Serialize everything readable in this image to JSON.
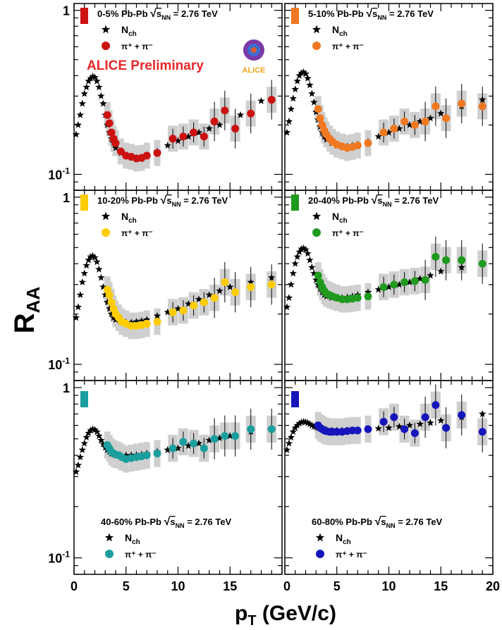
{
  "figure": {
    "ylabel_main": "R",
    "ylabel_sub": "AA",
    "xlabel_main": "p",
    "xlabel_sub": "T",
    "xlabel_unit": " (GeV/c)",
    "preliminary": "ALICE Preliminary",
    "logo_text": "ALICE",
    "system": "Pb-Pb",
    "sqrt_s": "s",
    "sqrt_s_sub": "NN",
    "energy": "= 2.76 TeV",
    "legend_nch": "N",
    "legend_nch_sub": "ch",
    "legend_pion": "π⁺ + π⁻",
    "y_ticks": [
      {
        "value": 0.1,
        "base": "10",
        "exp": "-1"
      },
      {
        "value": 1,
        "base": "1",
        "exp": ""
      }
    ],
    "x_ticks": [
      "0",
      "5",
      "10",
      "15",
      "20"
    ]
  },
  "chart_data": [
    {
      "type": "scatter",
      "centrality": "0-5%",
      "color": "#cc1111",
      "position": "top-left",
      "xlim": [
        0,
        20
      ],
      "ylim": [
        0.08,
        1.1
      ],
      "yscale": "log",
      "series": [
        {
          "name": "N_ch",
          "marker": "star",
          "x": [
            0.2,
            0.4,
            0.6,
            0.8,
            1.0,
            1.2,
            1.4,
            1.6,
            1.8,
            2.0,
            2.2,
            2.4,
            2.6,
            2.8,
            3.0,
            3.2,
            3.4,
            3.6,
            3.8,
            4.0,
            4.5,
            5.0,
            5.5,
            6.0,
            6.5,
            7.0,
            8.0,
            9.0,
            10.0,
            11.0,
            12.0,
            13.0,
            14.0,
            16.0,
            18.0
          ],
          "y": [
            0.175,
            0.2,
            0.23,
            0.27,
            0.31,
            0.34,
            0.37,
            0.385,
            0.395,
            0.39,
            0.37,
            0.34,
            0.3,
            0.27,
            0.23,
            0.2,
            0.18,
            0.165,
            0.155,
            0.145,
            0.135,
            0.13,
            0.127,
            0.126,
            0.127,
            0.13,
            0.138,
            0.15,
            0.16,
            0.17,
            0.18,
            0.19,
            0.2,
            0.23,
            0.28
          ]
        },
        {
          "name": "π⁺ + π⁻",
          "marker": "circle",
          "x": [
            3.2,
            3.4,
            3.6,
            3.8,
            4.0,
            4.5,
            5.0,
            5.5,
            6.0,
            6.5,
            7.0,
            8.0,
            9.5,
            10.5,
            11.5,
            12.5,
            13.5,
            14.5,
            15.5,
            17.0,
            19.0
          ],
          "y": [
            0.23,
            0.205,
            0.18,
            0.165,
            0.155,
            0.138,
            0.13,
            0.128,
            0.125,
            0.126,
            0.13,
            0.135,
            0.165,
            0.17,
            0.18,
            0.17,
            0.21,
            0.245,
            0.19,
            0.235,
            0.285
          ]
        }
      ]
    },
    {
      "type": "scatter",
      "centrality": "5-10%",
      "color": "#f07820",
      "position": "top-right",
      "xlim": [
        0,
        20
      ],
      "ylim": [
        0.08,
        1.1
      ],
      "yscale": "log",
      "series": [
        {
          "name": "N_ch",
          "marker": "star",
          "x": [
            0.2,
            0.4,
            0.6,
            0.8,
            1.0,
            1.2,
            1.4,
            1.6,
            1.8,
            2.0,
            2.2,
            2.4,
            2.6,
            2.8,
            3.0,
            3.2,
            3.4,
            3.6,
            3.8,
            4.0,
            4.5,
            5.0,
            5.5,
            6.0,
            6.5,
            7.0,
            8.0,
            9.0,
            10.0,
            11.0,
            12.0,
            13.0,
            14.0,
            15.0,
            17.0,
            19.0
          ],
          "y": [
            0.18,
            0.21,
            0.25,
            0.29,
            0.33,
            0.37,
            0.4,
            0.415,
            0.42,
            0.41,
            0.385,
            0.35,
            0.31,
            0.275,
            0.24,
            0.215,
            0.195,
            0.18,
            0.17,
            0.163,
            0.155,
            0.15,
            0.148,
            0.148,
            0.15,
            0.152,
            0.158,
            0.17,
            0.18,
            0.19,
            0.2,
            0.21,
            0.22,
            0.235,
            0.26,
            0.285
          ]
        },
        {
          "name": "π⁺ + π⁻",
          "marker": "circle",
          "x": [
            3.2,
            3.4,
            3.6,
            3.8,
            4.0,
            4.3,
            4.6,
            5.0,
            5.5,
            6.0,
            6.5,
            7.0,
            8.0,
            9.5,
            10.5,
            11.5,
            12.5,
            13.5,
            14.5,
            15.5,
            17.0,
            19.0
          ],
          "y": [
            0.25,
            0.22,
            0.2,
            0.185,
            0.175,
            0.165,
            0.158,
            0.152,
            0.148,
            0.145,
            0.147,
            0.15,
            0.155,
            0.18,
            0.19,
            0.21,
            0.2,
            0.21,
            0.26,
            0.22,
            0.27,
            0.26
          ]
        }
      ]
    },
    {
      "type": "scatter",
      "centrality": "10-20%",
      "color": "#ffcc00",
      "position": "middle-left",
      "xlim": [
        0,
        20
      ],
      "ylim": [
        0.08,
        1.1
      ],
      "yscale": "log",
      "series": [
        {
          "name": "N_ch",
          "marker": "star",
          "x": [
            0.2,
            0.4,
            0.6,
            0.8,
            1.0,
            1.2,
            1.4,
            1.6,
            1.8,
            2.0,
            2.2,
            2.4,
            2.6,
            2.8,
            3.0,
            3.2,
            3.4,
            3.6,
            3.8,
            4.0,
            4.5,
            5.0,
            5.5,
            6.0,
            6.5,
            7.0,
            8.0,
            9.0,
            10.0,
            11.0,
            12.0,
            13.0,
            14.0,
            15.0,
            17.0,
            19.0
          ],
          "y": [
            0.19,
            0.22,
            0.26,
            0.31,
            0.35,
            0.39,
            0.42,
            0.44,
            0.445,
            0.435,
            0.41,
            0.37,
            0.33,
            0.29,
            0.26,
            0.235,
            0.215,
            0.2,
            0.19,
            0.185,
            0.18,
            0.178,
            0.178,
            0.18,
            0.182,
            0.185,
            0.195,
            0.205,
            0.215,
            0.23,
            0.245,
            0.26,
            0.275,
            0.29,
            0.31,
            0.33
          ]
        },
        {
          "name": "π⁺ + π⁻",
          "marker": "circle",
          "x": [
            3.2,
            3.4,
            3.6,
            3.8,
            4.0,
            4.3,
            4.6,
            5.0,
            5.5,
            6.0,
            6.5,
            7.0,
            8.0,
            9.5,
            10.5,
            11.5,
            12.5,
            13.5,
            14.5,
            15.5,
            17.0,
            19.0
          ],
          "y": [
            0.28,
            0.26,
            0.235,
            0.215,
            0.2,
            0.19,
            0.18,
            0.175,
            0.17,
            0.17,
            0.172,
            0.175,
            0.18,
            0.205,
            0.21,
            0.225,
            0.235,
            0.25,
            0.31,
            0.27,
            0.29,
            0.3
          ]
        }
      ]
    },
    {
      "type": "scatter",
      "centrality": "20-40%",
      "color": "#1f9a1f",
      "position": "middle-right",
      "xlim": [
        0,
        20
      ],
      "ylim": [
        0.08,
        1.1
      ],
      "yscale": "log",
      "series": [
        {
          "name": "N_ch",
          "marker": "star",
          "x": [
            0.2,
            0.4,
            0.6,
            0.8,
            1.0,
            1.2,
            1.4,
            1.6,
            1.8,
            2.0,
            2.2,
            2.4,
            2.6,
            2.8,
            3.0,
            3.2,
            3.4,
            3.6,
            3.8,
            4.0,
            4.5,
            5.0,
            5.5,
            6.0,
            6.5,
            7.0,
            8.0,
            9.0,
            10.0,
            11.0,
            12.0,
            13.0,
            14.0,
            15.0,
            17.0,
            19.0
          ],
          "y": [
            0.22,
            0.25,
            0.3,
            0.35,
            0.4,
            0.44,
            0.47,
            0.49,
            0.495,
            0.485,
            0.46,
            0.42,
            0.38,
            0.35,
            0.32,
            0.3,
            0.285,
            0.27,
            0.26,
            0.255,
            0.25,
            0.25,
            0.25,
            0.252,
            0.255,
            0.26,
            0.27,
            0.28,
            0.29,
            0.3,
            0.31,
            0.325,
            0.34,
            0.36,
            0.38,
            0.4
          ]
        },
        {
          "name": "π⁺ + π⁻",
          "marker": "circle",
          "x": [
            3.2,
            3.4,
            3.6,
            3.8,
            4.0,
            4.3,
            4.6,
            5.0,
            5.5,
            6.0,
            6.5,
            7.0,
            8.0,
            9.5,
            10.5,
            11.5,
            12.5,
            13.5,
            14.5,
            15.5,
            17.0,
            19.0
          ],
          "y": [
            0.34,
            0.31,
            0.29,
            0.275,
            0.265,
            0.26,
            0.255,
            0.25,
            0.245,
            0.245,
            0.247,
            0.25,
            0.255,
            0.29,
            0.3,
            0.31,
            0.315,
            0.32,
            0.44,
            0.42,
            0.42,
            0.4
          ]
        }
      ]
    },
    {
      "type": "scatter",
      "centrality": "40-60%",
      "color": "#1a9e9e",
      "position": "bottom-left",
      "xlim": [
        0,
        20
      ],
      "ylim": [
        0.08,
        1.1
      ],
      "yscale": "log",
      "series": [
        {
          "name": "N_ch",
          "marker": "star",
          "x": [
            0.2,
            0.4,
            0.6,
            0.8,
            1.0,
            1.2,
            1.4,
            1.6,
            1.8,
            2.0,
            2.2,
            2.4,
            2.6,
            2.8,
            3.0,
            3.2,
            3.4,
            3.6,
            3.8,
            4.0,
            4.5,
            5.0,
            5.5,
            6.0,
            6.5,
            7.0,
            8.0,
            9.0,
            10.0,
            11.0,
            12.0,
            13.0,
            14.0,
            15.0,
            17.0,
            19.0
          ],
          "y": [
            0.32,
            0.35,
            0.39,
            0.43,
            0.47,
            0.51,
            0.54,
            0.56,
            0.57,
            0.565,
            0.55,
            0.52,
            0.49,
            0.465,
            0.445,
            0.43,
            0.42,
            0.41,
            0.405,
            0.4,
            0.4,
            0.4,
            0.4,
            0.402,
            0.405,
            0.41,
            0.42,
            0.43,
            0.44,
            0.455,
            0.47,
            0.49,
            0.505,
            0.52,
            0.55,
            0.57
          ]
        },
        {
          "name": "π⁺ + π⁻",
          "marker": "circle",
          "x": [
            3.2,
            3.4,
            3.6,
            3.8,
            4.0,
            4.3,
            4.6,
            5.0,
            5.5,
            6.0,
            6.5,
            7.0,
            8.0,
            9.5,
            10.5,
            11.5,
            12.5,
            13.5,
            14.5,
            15.5,
            17.0,
            19.0
          ],
          "y": [
            0.46,
            0.44,
            0.42,
            0.41,
            0.405,
            0.4,
            0.39,
            0.38,
            0.385,
            0.39,
            0.395,
            0.4,
            0.41,
            0.44,
            0.48,
            0.47,
            0.44,
            0.5,
            0.52,
            0.52,
            0.57,
            0.57
          ]
        }
      ]
    },
    {
      "type": "scatter",
      "centrality": "60-80%",
      "color": "#1515bb",
      "position": "bottom-right",
      "xlim": [
        0,
        20
      ],
      "ylim": [
        0.08,
        1.1
      ],
      "yscale": "log",
      "series": [
        {
          "name": "N_ch",
          "marker": "star",
          "x": [
            0.2,
            0.4,
            0.6,
            0.8,
            1.0,
            1.2,
            1.4,
            1.6,
            1.8,
            2.0,
            2.2,
            2.4,
            2.6,
            2.8,
            3.0,
            3.2,
            3.4,
            3.6,
            3.8,
            4.0,
            4.5,
            5.0,
            5.5,
            6.0,
            6.5,
            7.0,
            8.0,
            9.0,
            10.0,
            11.0,
            12.0,
            13.0,
            14.0,
            15.0,
            17.0,
            19.0
          ],
          "y": [
            0.43,
            0.47,
            0.51,
            0.55,
            0.58,
            0.6,
            0.615,
            0.625,
            0.63,
            0.628,
            0.62,
            0.61,
            0.6,
            0.59,
            0.585,
            0.58,
            0.575,
            0.57,
            0.568,
            0.565,
            0.56,
            0.56,
            0.56,
            0.56,
            0.562,
            0.565,
            0.57,
            0.575,
            0.58,
            0.59,
            0.6,
            0.61,
            0.62,
            0.64,
            0.67,
            0.7
          ]
        },
        {
          "name": "π⁺ + π⁻",
          "marker": "circle",
          "x": [
            3.2,
            3.4,
            3.6,
            3.8,
            4.0,
            4.3,
            4.6,
            5.0,
            5.5,
            6.0,
            6.5,
            7.0,
            8.0,
            9.5,
            10.5,
            11.5,
            12.5,
            13.5,
            14.5,
            15.5,
            17.0,
            19.0
          ],
          "y": [
            0.6,
            0.58,
            0.57,
            0.56,
            0.555,
            0.55,
            0.55,
            0.55,
            0.55,
            0.555,
            0.56,
            0.56,
            0.57,
            0.63,
            0.67,
            0.57,
            0.54,
            0.67,
            0.79,
            0.58,
            0.69,
            0.55
          ]
        }
      ]
    }
  ]
}
